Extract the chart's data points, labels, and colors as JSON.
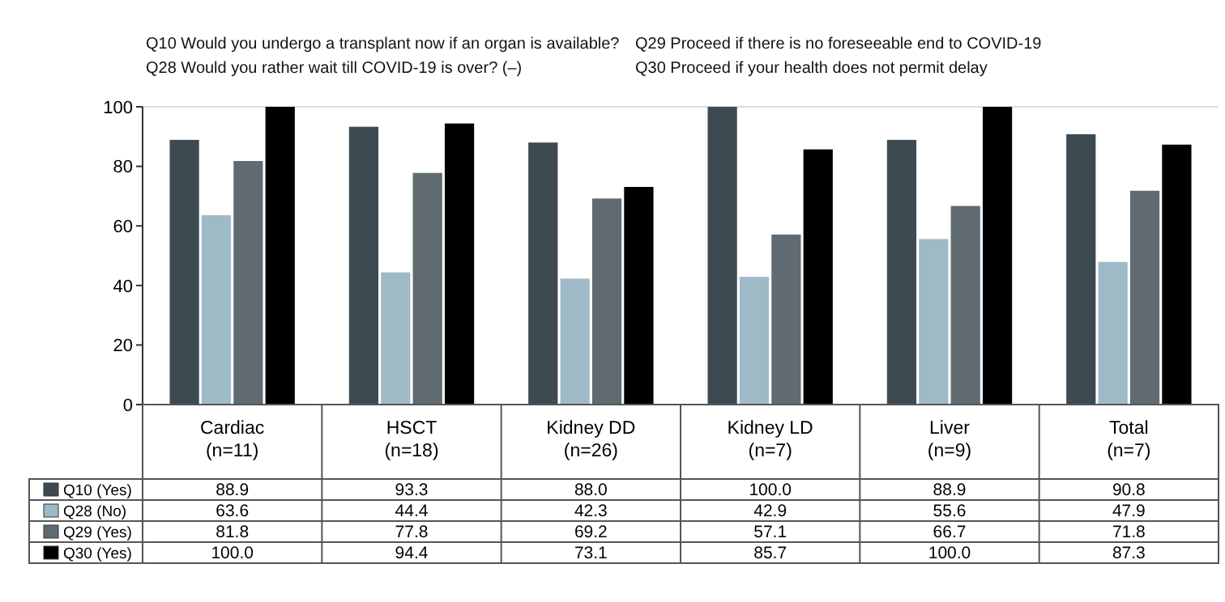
{
  "chart_data": {
    "type": "bar",
    "categories": [
      "Cardiac\n(n=11)",
      "HSCT\n(n=18)",
      "Kidney DD\n(n=26)",
      "Kidney LD\n(n=7)",
      "Liver\n(n=9)",
      "Total\n(n=7)"
    ],
    "series": [
      {
        "name": "Q10 (Yes)",
        "color": "#3d4a52",
        "values": [
          88.9,
          93.3,
          88.0,
          100.0,
          88.9,
          90.8
        ],
        "value_labels": [
          "88.9",
          "93.3",
          "88.0",
          "100.0",
          "88.9",
          "90.8"
        ]
      },
      {
        "name": "Q28 (No)",
        "color": "#9fbac7",
        "values": [
          63.6,
          44.4,
          42.3,
          42.9,
          55.6,
          47.9
        ],
        "value_labels": [
          "63.6",
          "44.4",
          "42.3",
          "42.9",
          "55.6",
          "47.9"
        ]
      },
      {
        "name": "Q29 (Yes)",
        "color": "#5f6b70",
        "values": [
          81.8,
          77.8,
          69.2,
          57.1,
          66.7,
          71.8
        ],
        "value_labels": [
          "81.8",
          "77.8",
          "69.2",
          "57.1",
          "66.7",
          "71.8"
        ]
      },
      {
        "name": "Q30 (Yes)",
        "color": "#000000",
        "values": [
          100.0,
          94.4,
          73.1,
          85.7,
          100.0,
          87.3
        ],
        "value_labels": [
          "100.0",
          "94.4",
          "73.1",
          "85.7",
          "100.0",
          "87.3"
        ]
      }
    ],
    "ylim": [
      0,
      100
    ],
    "yticks": [
      0,
      20,
      40,
      60,
      80,
      100
    ],
    "legend": "bottom",
    "annotations": [
      "Q10 Would you undergo a transplant now if an organ is available?",
      "Q28 Would you rather wait till COVID-19 is over? (–)",
      "Q29 Proceed if there is no foreseeable end to COVID-19",
      "Q30 Proceed if your health does not permit delay"
    ]
  }
}
